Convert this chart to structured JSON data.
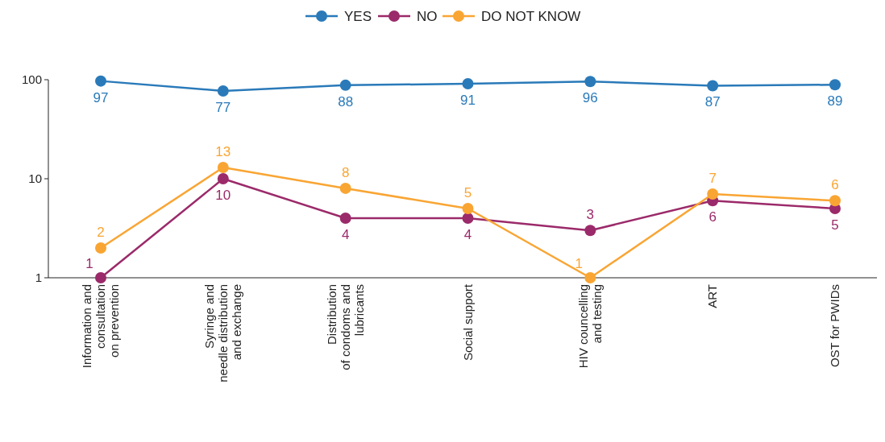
{
  "chart_data": {
    "type": "line",
    "categories": [
      "Information and\nconsultation\non prevention",
      "Syringe and\nneedle distribution\nand exchange",
      "Distribution\nof condoms and\nlubricants",
      "Social support",
      "HIV councelling\nand testing",
      "ART",
      "OST for PWIDs"
    ],
    "series": [
      {
        "name": "YES",
        "color": "#2a7ab9",
        "values": [
          97,
          77,
          88,
          91,
          96,
          87,
          89
        ]
      },
      {
        "name": "NO",
        "color": "#9b2a6a",
        "values": [
          1,
          10,
          4,
          4,
          3,
          6,
          5
        ]
      },
      {
        "name": "DO NOT KNOW",
        "color": "#f9a533",
        "values": [
          2,
          13,
          8,
          5,
          1,
          7,
          6
        ]
      }
    ],
    "log": true,
    "ylim": [
      1,
      100
    ],
    "yticks": [
      1,
      10,
      100
    ],
    "data_labels": true,
    "legend": "top",
    "marker": "circle",
    "grid": false
  }
}
